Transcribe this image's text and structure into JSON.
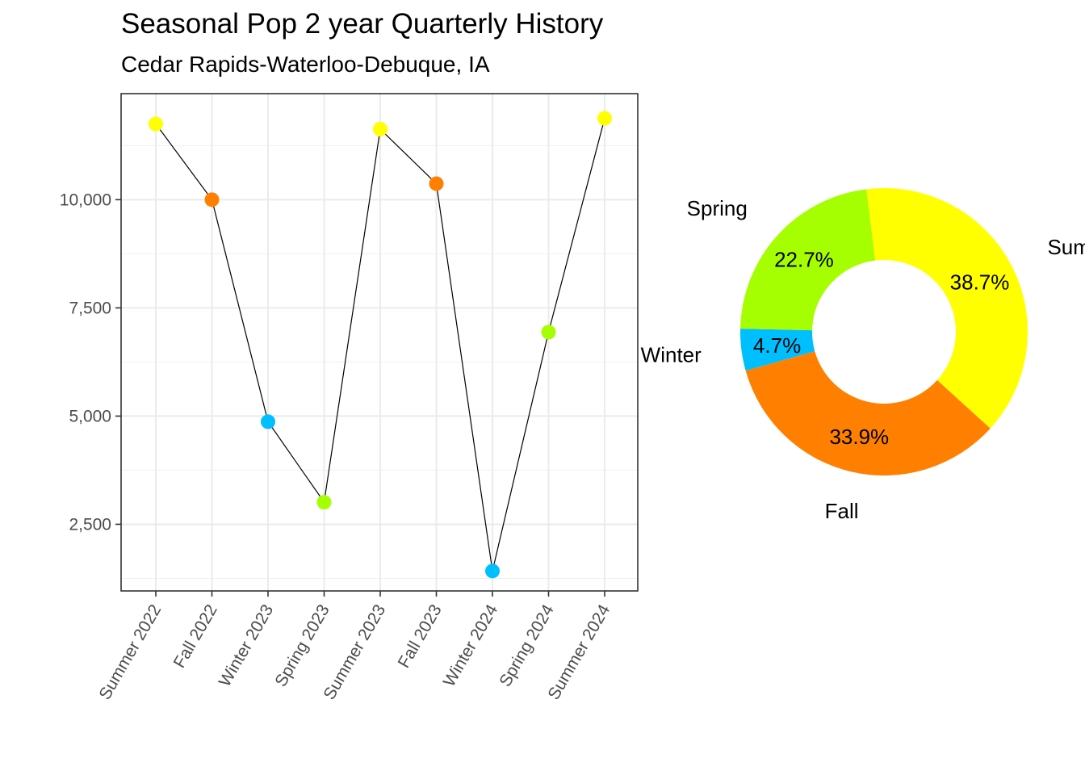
{
  "title": "Seasonal Pop 2 year Quarterly History",
  "subtitle": "Cedar Rapids-Waterloo-Debuque, IA",
  "season_colors": {
    "Summer": "#FFFF00",
    "Fall": "#FF8000",
    "Winter": "#00BFFF",
    "Spring": "#A6FF00"
  },
  "chart_data": [
    {
      "type": "line",
      "categories": [
        "Summer 2022",
        "Fall 2022",
        "Winter 2023",
        "Spring 2023",
        "Summer 2023",
        "Fall 2023",
        "Winter 2024",
        "Spring 2024",
        "Summer 2024"
      ],
      "seasons": [
        "Summer",
        "Fall",
        "Winter",
        "Spring",
        "Summer",
        "Fall",
        "Winter",
        "Spring",
        "Summer"
      ],
      "values": [
        11750,
        10000,
        4870,
        3010,
        11630,
        10370,
        1420,
        6940,
        11880
      ],
      "xlabel": "",
      "ylabel": "",
      "ylim": [
        960,
        12450
      ],
      "yticks": [
        2500,
        5000,
        7500,
        10000
      ],
      "ytick_labels": [
        "2,500",
        "5,000",
        "7,500",
        "10,000"
      ],
      "grid": true
    },
    {
      "type": "pie",
      "style": "donut",
      "slices": [
        {
          "label": "Summer",
          "value": 38.7,
          "pct_label": "38.7%"
        },
        {
          "label": "Fall",
          "value": 33.9,
          "pct_label": "33.9%"
        },
        {
          "label": "Winter",
          "value": 4.7,
          "pct_label": "4.7%"
        },
        {
          "label": "Spring",
          "value": 22.7,
          "pct_label": "22.7%"
        }
      ]
    }
  ]
}
